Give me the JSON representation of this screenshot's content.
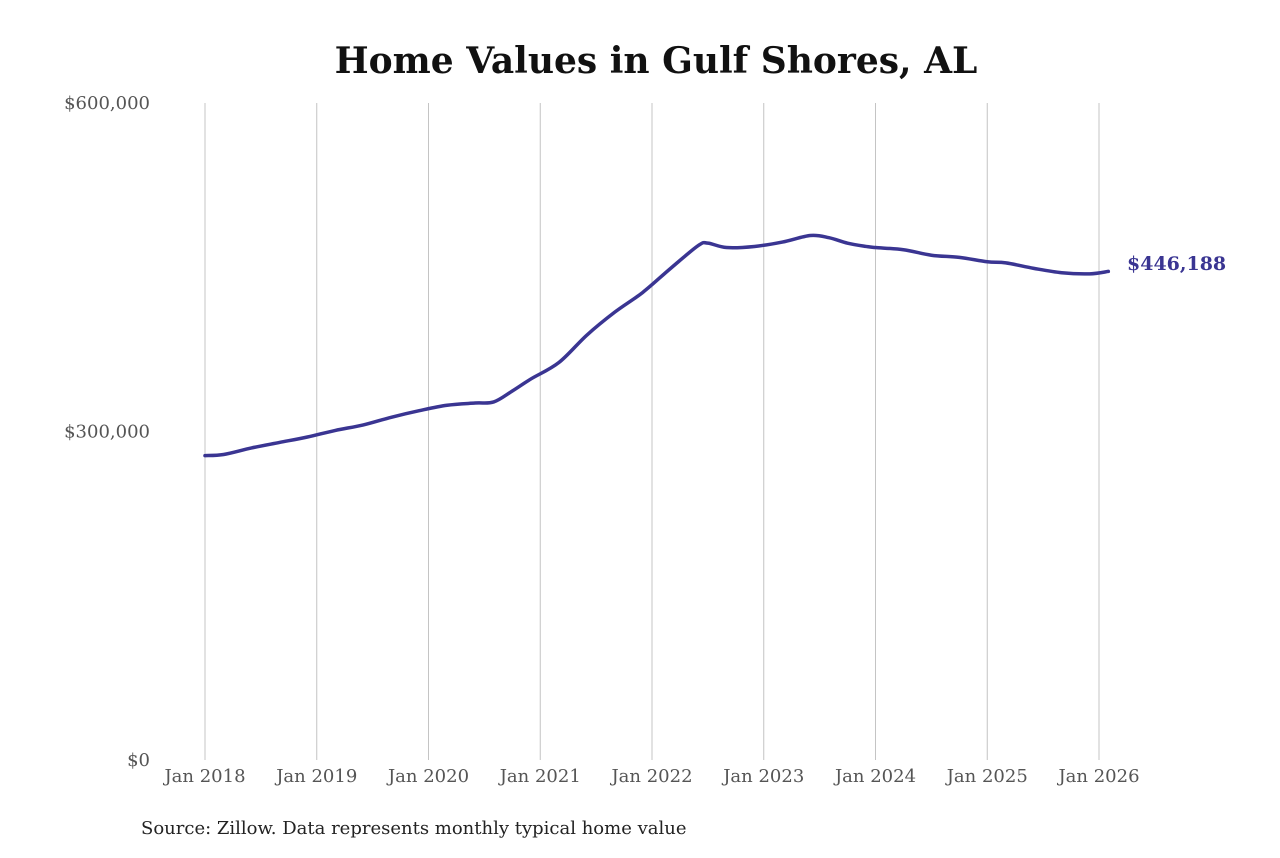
{
  "chart_data": {
    "type": "line",
    "title": "Home Values in Gulf Shores, AL",
    "xlabel": "",
    "ylabel": "",
    "ylim": [
      0,
      600000
    ],
    "y_ticks": [
      {
        "value": 0,
        "label": "$0"
      },
      {
        "value": 300000,
        "label": "$300,000"
      },
      {
        "value": 600000,
        "label": "$600,000"
      }
    ],
    "x_range": [
      "2018-01",
      "2026-01"
    ],
    "x_ticks": [
      {
        "date": "2018-01",
        "label": "Jan 2018"
      },
      {
        "date": "2019-01",
        "label": "Jan 2019"
      },
      {
        "date": "2020-01",
        "label": "Jan 2020"
      },
      {
        "date": "2021-01",
        "label": "Jan 2021"
      },
      {
        "date": "2022-01",
        "label": "Jan 2022"
      },
      {
        "date": "2023-01",
        "label": "Jan 2023"
      },
      {
        "date": "2024-01",
        "label": "Jan 2024"
      },
      {
        "date": "2025-01",
        "label": "Jan 2025"
      },
      {
        "date": "2026-01",
        "label": "Jan 2026"
      }
    ],
    "grid": "vertical",
    "line_color": "#3a3592",
    "series": [
      {
        "x": [
          "2018-01",
          "2018-03",
          "2018-06",
          "2018-09",
          "2018-12",
          "2019-03",
          "2019-06",
          "2019-09",
          "2019-12",
          "2020-03",
          "2020-06",
          "2020-08",
          "2020-10",
          "2020-12",
          "2021-03",
          "2021-06",
          "2021-09",
          "2021-12",
          "2022-03",
          "2022-06",
          "2022-07",
          "2022-09",
          "2022-12",
          "2023-03",
          "2023-06",
          "2023-08",
          "2023-10",
          "2023-12",
          "2024-01",
          "2024-04",
          "2024-07",
          "2024-10",
          "2025-01",
          "2025-03",
          "2025-06",
          "2025-09",
          "2025-12",
          "2026-02"
        ],
        "values": [
          278000,
          279000,
          285000,
          290000,
          295000,
          301000,
          306000,
          313000,
          319000,
          324000,
          326000,
          327000,
          337000,
          348000,
          363000,
          388000,
          409000,
          427000,
          449000,
          470000,
          472000,
          468000,
          469000,
          473000,
          479000,
          477000,
          472000,
          469000,
          468000,
          466000,
          461000,
          459000,
          455000,
          454000,
          449000,
          445000,
          444000,
          446188
        ]
      }
    ],
    "end_label": "$446,188",
    "source_note": "Source: Zillow. Data represents monthly typical home value"
  }
}
